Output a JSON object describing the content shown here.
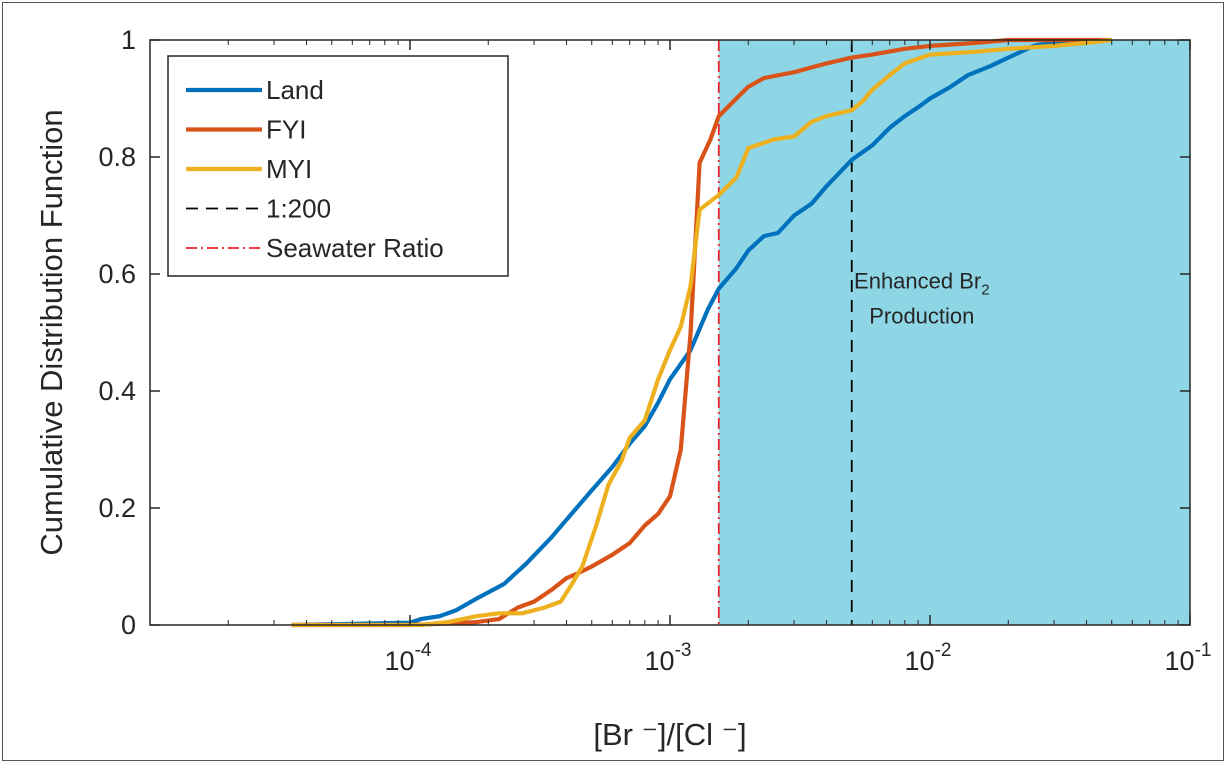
{
  "chart_data": {
    "type": "line",
    "xlabel": "[Br ⁻]/[Cl ⁻]",
    "ylabel": "Cumulative Distribution Function",
    "xscale": "log",
    "xlim": [
      1e-05,
      0.1
    ],
    "ylim": [
      0,
      1
    ],
    "x_ticks": [
      {
        "value": 0.0001,
        "base": "10",
        "exp": "-4"
      },
      {
        "value": 0.001,
        "base": "10",
        "exp": "-3"
      },
      {
        "value": 0.01,
        "base": "10",
        "exp": "-2"
      },
      {
        "value": 0.1,
        "base": "10",
        "exp": "-1"
      }
    ],
    "y_ticks": [
      {
        "value": 0,
        "label": "0"
      },
      {
        "value": 0.2,
        "label": "0.2"
      },
      {
        "value": 0.4,
        "label": "0.4"
      },
      {
        "value": 0.6,
        "label": "0.6"
      },
      {
        "value": 0.8,
        "label": "0.8"
      },
      {
        "value": 1,
        "label": "1"
      }
    ],
    "grid": false,
    "legend_position": "top-left",
    "shaded_region": {
      "x_start": 0.00154,
      "x_end": 0.1,
      "color": "#8ed6e5"
    },
    "annotation": {
      "line1_text": "Enhanced Br",
      "line1_subscript": "2",
      "line2": "Production",
      "x": 0.0093,
      "y1": 0.575,
      "y2": 0.515
    },
    "reference_lines": [
      {
        "name": "1:200",
        "x": 0.005,
        "color": "#000000",
        "style": "dashed"
      },
      {
        "name": "Seawater Ratio",
        "x": 0.00154,
        "color": "#e8232a",
        "style": "dashdot"
      }
    ],
    "series": [
      {
        "name": "Land",
        "color": "#0072bd",
        "points": [
          [
            3.5e-05,
            0.0
          ],
          [
            6e-05,
            0.002
          ],
          [
            0.0001,
            0.004
          ],
          [
            0.00011,
            0.01
          ],
          [
            0.00013,
            0.015
          ],
          [
            0.00015,
            0.025
          ],
          [
            0.00018,
            0.045
          ],
          [
            0.00023,
            0.07
          ],
          [
            0.00028,
            0.105
          ],
          [
            0.00035,
            0.15
          ],
          [
            0.0004,
            0.18
          ],
          [
            0.0005,
            0.23
          ],
          [
            0.0006,
            0.27
          ],
          [
            0.0007,
            0.31
          ],
          [
            0.0008,
            0.34
          ],
          [
            0.0009,
            0.38
          ],
          [
            0.001,
            0.42
          ],
          [
            0.0012,
            0.47
          ],
          [
            0.0014,
            0.54
          ],
          [
            0.00154,
            0.575
          ],
          [
            0.0018,
            0.61
          ],
          [
            0.002,
            0.64
          ],
          [
            0.0023,
            0.665
          ],
          [
            0.0026,
            0.67
          ],
          [
            0.003,
            0.7
          ],
          [
            0.0035,
            0.72
          ],
          [
            0.004,
            0.75
          ],
          [
            0.005,
            0.795
          ],
          [
            0.006,
            0.82
          ],
          [
            0.007,
            0.85
          ],
          [
            0.008,
            0.87
          ],
          [
            0.009,
            0.885
          ],
          [
            0.01,
            0.9
          ],
          [
            0.012,
            0.92
          ],
          [
            0.014,
            0.94
          ],
          [
            0.017,
            0.955
          ],
          [
            0.02,
            0.97
          ],
          [
            0.025,
            0.99
          ],
          [
            0.03,
            0.997
          ],
          [
            0.05,
            1.0
          ]
        ]
      },
      {
        "name": "FYI",
        "color": "#d95319",
        "points": [
          [
            3.5e-05,
            0.0
          ],
          [
            0.0001,
            0.0
          ],
          [
            0.00013,
            0.002
          ],
          [
            0.00018,
            0.005
          ],
          [
            0.00022,
            0.01
          ],
          [
            0.00026,
            0.03
          ],
          [
            0.0003,
            0.04
          ],
          [
            0.00035,
            0.06
          ],
          [
            0.0004,
            0.08
          ],
          [
            0.00045,
            0.09
          ],
          [
            0.0005,
            0.1
          ],
          [
            0.0006,
            0.12
          ],
          [
            0.0007,
            0.14
          ],
          [
            0.0008,
            0.17
          ],
          [
            0.0009,
            0.19
          ],
          [
            0.001,
            0.22
          ],
          [
            0.0011,
            0.3
          ],
          [
            0.0012,
            0.5
          ],
          [
            0.0013,
            0.79
          ],
          [
            0.00143,
            0.83
          ],
          [
            0.00154,
            0.87
          ],
          [
            0.0018,
            0.9
          ],
          [
            0.002,
            0.92
          ],
          [
            0.0023,
            0.935
          ],
          [
            0.003,
            0.945
          ],
          [
            0.004,
            0.96
          ],
          [
            0.005,
            0.97
          ],
          [
            0.006,
            0.975
          ],
          [
            0.008,
            0.985
          ],
          [
            0.01,
            0.99
          ],
          [
            0.015,
            0.995
          ],
          [
            0.02,
            1.0
          ],
          [
            0.05,
            1.0
          ]
        ]
      },
      {
        "name": "MYI",
        "color": "#edb120",
        "points": [
          [
            3.5e-05,
            0.0
          ],
          [
            0.00011,
            0.0
          ],
          [
            0.00014,
            0.005
          ],
          [
            0.00018,
            0.015
          ],
          [
            0.00022,
            0.02
          ],
          [
            0.00027,
            0.02
          ],
          [
            0.00033,
            0.03
          ],
          [
            0.00038,
            0.04
          ],
          [
            0.00042,
            0.07
          ],
          [
            0.00046,
            0.1
          ],
          [
            0.00052,
            0.17
          ],
          [
            0.00058,
            0.24
          ],
          [
            0.00065,
            0.28
          ],
          [
            0.0007,
            0.32
          ],
          [
            0.0008,
            0.35
          ],
          [
            0.0009,
            0.42
          ],
          [
            0.001,
            0.47
          ],
          [
            0.0011,
            0.51
          ],
          [
            0.0012,
            0.58
          ],
          [
            0.0013,
            0.71
          ],
          [
            0.00154,
            0.735
          ],
          [
            0.0018,
            0.765
          ],
          [
            0.002,
            0.815
          ],
          [
            0.0025,
            0.83
          ],
          [
            0.003,
            0.835
          ],
          [
            0.0035,
            0.86
          ],
          [
            0.004,
            0.87
          ],
          [
            0.005,
            0.88
          ],
          [
            0.0055,
            0.895
          ],
          [
            0.006,
            0.915
          ],
          [
            0.007,
            0.94
          ],
          [
            0.008,
            0.96
          ],
          [
            0.01,
            0.975
          ],
          [
            0.015,
            0.98
          ],
          [
            0.02,
            0.985
          ],
          [
            0.03,
            0.99
          ],
          [
            0.04,
            0.995
          ],
          [
            0.05,
            1.0
          ]
        ]
      }
    ]
  }
}
